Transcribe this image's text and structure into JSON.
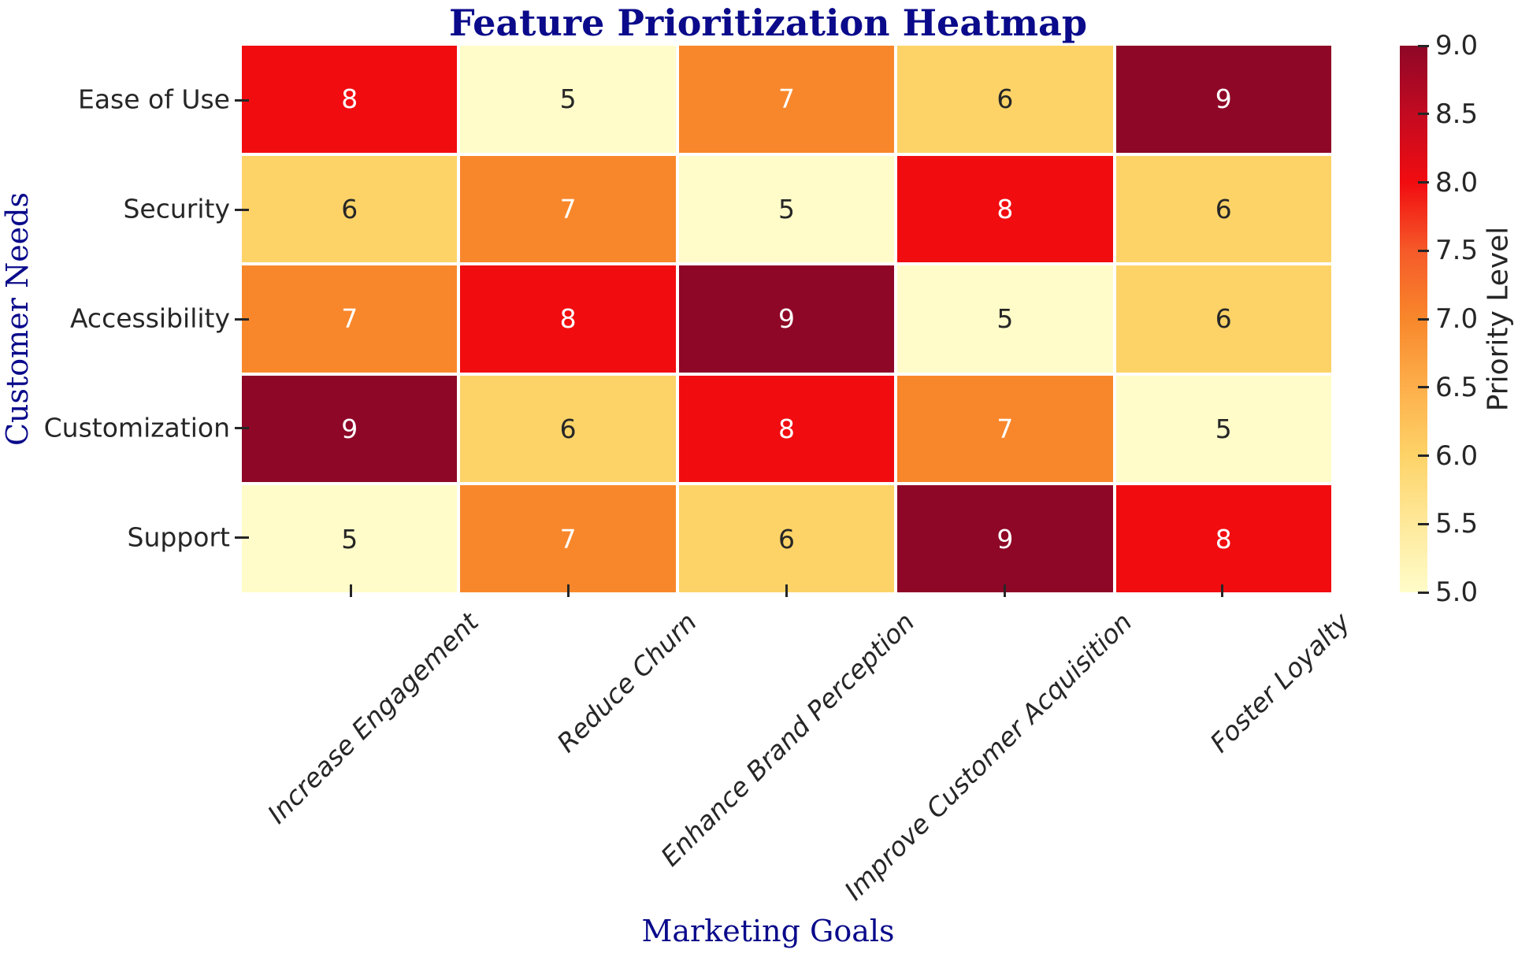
{
  "chart_data": {
    "type": "heatmap",
    "title": "Feature Prioritization Heatmap",
    "xlabel": "Marketing Goals",
    "ylabel": "Customer Needs",
    "x_categories": [
      "Increase Engagement",
      "Reduce Churn",
      "Enhance Brand Perception",
      "Improve Customer Acquisition",
      "Foster Loyalty"
    ],
    "y_categories": [
      "Ease of Use",
      "Security",
      "Accessibility",
      "Customization",
      "Support"
    ],
    "values": [
      [
        8,
        5,
        7,
        6,
        9
      ],
      [
        6,
        7,
        5,
        8,
        6
      ],
      [
        7,
        8,
        9,
        5,
        6
      ],
      [
        9,
        6,
        8,
        7,
        5
      ],
      [
        5,
        7,
        6,
        9,
        8
      ]
    ],
    "vmin": 5,
    "vmax": 9,
    "cell_colors": {
      "5": "#FFFCC9",
      "6": "#FDD368",
      "7": "#F8872B",
      "8": "#F10C10",
      "9": "#8E0727"
    },
    "annotation_colors": {
      "light": "#FFFFFF",
      "dark": "#262626"
    },
    "white_text_threshold": 7,
    "title_color": "#0A0A8B",
    "axis_label_color": "#0A0A8B",
    "tick_label_color": "#262626",
    "grid_line_color": "#FFFFFF",
    "background_color": "#FFFFFF",
    "colorbar": {
      "label": "Priority Level",
      "ticks": [
        "9.0",
        "8.5",
        "8.0",
        "7.5",
        "7.0",
        "6.5",
        "6.0",
        "5.5",
        "5.0"
      ],
      "gradient_stops_bottom_to_top": [
        "#FFFCC9",
        "#FEE99B",
        "#FDD368",
        "#FDAF4B",
        "#F8872B",
        "#F65A29",
        "#F10C10",
        "#C30A21",
        "#8E0727"
      ]
    }
  }
}
